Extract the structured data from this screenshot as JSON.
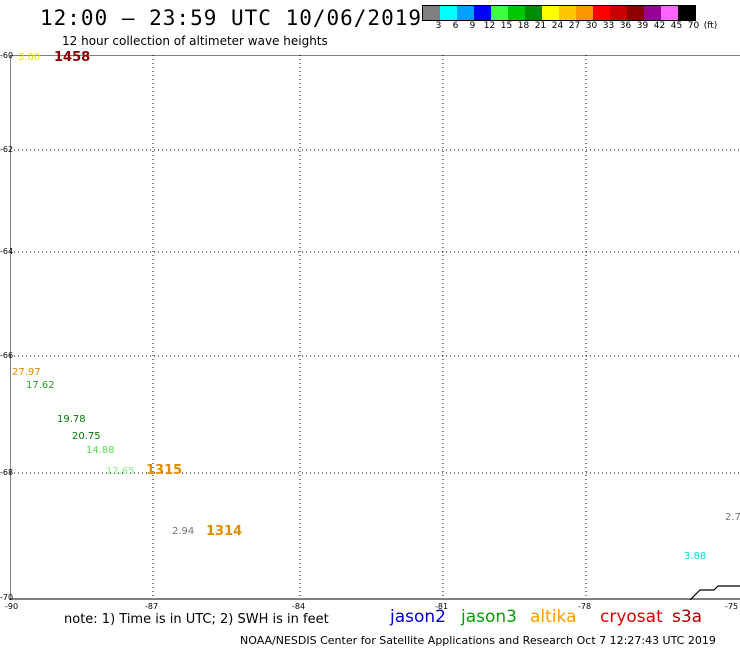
{
  "header": {
    "title": "12:00 – 23:59 UTC 10/06/2019",
    "subtitle": "12 hour collection of altimeter wave heights"
  },
  "color_scale": {
    "colors": [
      "#7f7f7f",
      "#00ffff",
      "#00a0ff",
      "#0000ff",
      "#40ff40",
      "#00c800",
      "#008c00",
      "#ffff00",
      "#ffc800",
      "#ff9600",
      "#ff0000",
      "#c80000",
      "#8c0000",
      "#960096",
      "#ff64ff",
      "#000000"
    ],
    "labels": [
      "3",
      "6",
      "9",
      "12",
      "15",
      "18",
      "21",
      "24",
      "27",
      "30",
      "33",
      "36",
      "39",
      "42",
      "45",
      "70",
      "(ft)"
    ]
  },
  "axes": {
    "lat_labels": [
      "-60",
      "-62",
      "-64",
      "-66",
      "-68",
      "-70"
    ],
    "lon_labels": [
      "-90",
      "-87",
      "-84",
      "-81",
      "-78",
      "-75"
    ]
  },
  "observations": [
    {
      "text": "3.00",
      "color": "#e6e600"
    },
    {
      "text": "27.97",
      "color": "#e68a00"
    },
    {
      "text": "17.62",
      "color": "#2aa02a"
    },
    {
      "text": "19.78",
      "color": "#007800"
    },
    {
      "text": "20.75",
      "color": "#007800"
    },
    {
      "text": "14.88",
      "color": "#55e055"
    },
    {
      "text": "12.65",
      "color": "#88ee88"
    },
    {
      "text": "2.94",
      "color": "#777777"
    },
    {
      "text": "3.88",
      "color": "#00dddd"
    },
    {
      "text": "2.7",
      "color": "#777777"
    }
  ],
  "passes": [
    {
      "text": "1458",
      "color": "#8c0000"
    },
    {
      "text": "1315",
      "color": "#e68a00"
    },
    {
      "text": "1314",
      "color": "#e68a00"
    }
  ],
  "footer": {
    "note": "note:  1) Time is in UTC;  2) SWH is in feet",
    "legend": [
      {
        "text": "jason2",
        "color": "#0000cc"
      },
      {
        "text": "jason3",
        "color": "#00a000"
      },
      {
        "text": "altika",
        "color": "#ff9900"
      },
      {
        "text": "cryosat",
        "color": "#dd0000"
      },
      {
        "text": "s3a",
        "color": "#aa0000"
      }
    ],
    "credit": "NOAA/NESDIS Center for Satellite Applications and Research     Oct  7 12:27:43 UTC 2019"
  }
}
